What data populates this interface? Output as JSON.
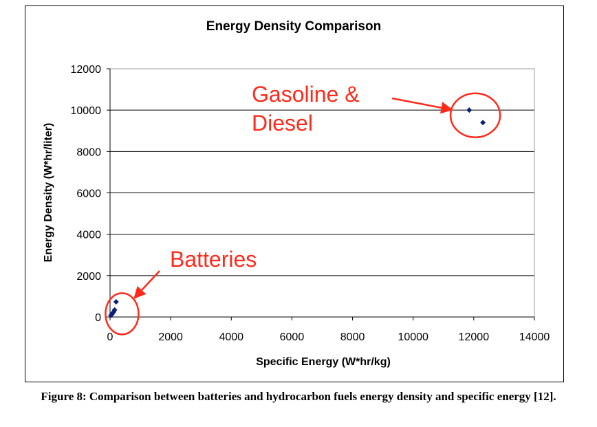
{
  "chart_data": {
    "type": "scatter",
    "title": "Energy Density Comparison",
    "xlabel": "Specific Energy (W*hr/kg)",
    "ylabel": "Energy Density (W*hr/liter)",
    "xlim": [
      0,
      14000
    ],
    "ylim": [
      0,
      12000
    ],
    "xticks": [
      0,
      2000,
      4000,
      6000,
      8000,
      10000,
      12000,
      14000
    ],
    "yticks": [
      0,
      2000,
      4000,
      6000,
      8000,
      10000,
      12000
    ],
    "xgrid": false,
    "ygrid": true,
    "legend": "none",
    "marker_color": "#0b1f7a",
    "series": [
      {
        "points": [
          {
            "x": 12300,
            "y": 9400
          },
          {
            "x": 11850,
            "y": 10000
          },
          {
            "x": 30,
            "y": 80
          },
          {
            "x": 60,
            "y": 130
          },
          {
            "x": 90,
            "y": 200
          },
          {
            "x": 120,
            "y": 250
          },
          {
            "x": 150,
            "y": 340
          },
          {
            "x": 200,
            "y": 730
          }
        ]
      }
    ],
    "annotations": [
      {
        "lines": [
          "Gasoline &",
          "Diesel"
        ],
        "color": "#ff2a1a",
        "circle_around": {
          "x": 12050,
          "y": 9750
        }
      },
      {
        "lines": [
          "Batteries"
        ],
        "color": "#ff2a1a",
        "circle_around": {
          "x": 100,
          "y": 420
        }
      }
    ]
  },
  "caption": {
    "text": "Figure 8: Comparison between batteries and hydrocarbon fuels energy density and specific energy [12]."
  }
}
